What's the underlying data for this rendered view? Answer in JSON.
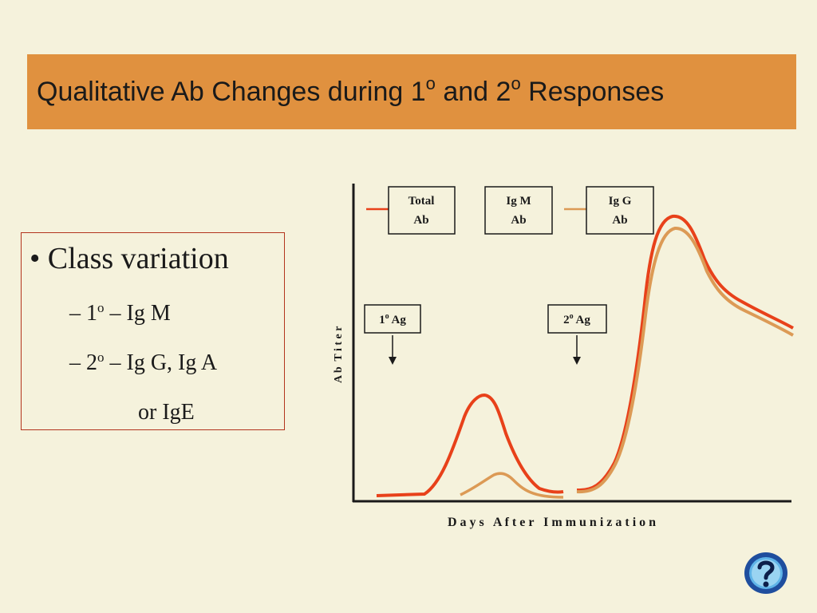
{
  "title": {
    "prefix": "Qualitative Ab Changes during 1",
    "sup1": "o",
    "middle": " and 2",
    "sup2": "o",
    "suffix": " Responses"
  },
  "bullets": {
    "main": "• Class variation",
    "sub1": {
      "prefix": "– 1",
      "sup": "o",
      "suffix": " – Ig M"
    },
    "sub2": {
      "prefix": "– 2",
      "sup": "o",
      "suffix": " – Ig G, Ig A"
    },
    "sub3": "or   IgE"
  },
  "diagram": {
    "y_axis_label": "A b  T i t e r",
    "x_axis_label": "D a y s   A f t e r   I m m u n i z a t i o n",
    "legend": {
      "total_line1": "Total",
      "total_line2": "Ab",
      "igm_line1": "Ig M",
      "igm_line2": "Ab",
      "igg_line1": "Ig G",
      "igg_line2": "Ab"
    },
    "primary_ag": {
      "num": "1",
      "sup": "o",
      "label": " Ag"
    },
    "secondary_ag": {
      "num": "2",
      "sup": "o",
      "label": " Ag"
    }
  },
  "colors": {
    "title_bar": "#e0913f",
    "total_ab_curve": "#e8411a",
    "igg_curve": "#dc9a55",
    "background": "#f5f2dc"
  },
  "icons": {
    "help": "question-mark-icon"
  }
}
